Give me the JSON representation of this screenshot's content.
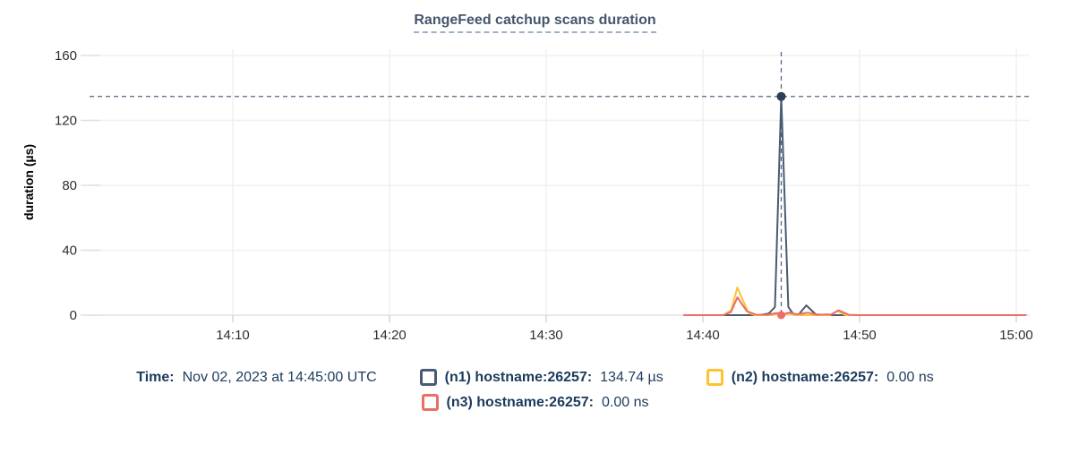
{
  "title": "RangeFeed catchup scans duration",
  "legend": {
    "time_label": "Time:",
    "time_value": "Nov 02, 2023 at 14:45:00 UTC"
  },
  "chart_data": {
    "type": "line",
    "title": "RangeFeed catchup scans duration",
    "ylabel": "duration (µs)",
    "ylim": [
      0,
      160
    ],
    "y_ticks": [
      0,
      40,
      80,
      120,
      160
    ],
    "x_ticks": [
      {
        "t": 10,
        "label": "14:10"
      },
      {
        "t": 20,
        "label": "14:20"
      },
      {
        "t": 30,
        "label": "14:30"
      },
      {
        "t": 40,
        "label": "14:40"
      },
      {
        "t": 50,
        "label": "14:50"
      },
      {
        "t": 60,
        "label": "15:00"
      }
    ],
    "grid": true,
    "legend_position": "bottom",
    "series": [
      {
        "id": "n1",
        "name": "(n1) hostname:26257:",
        "value_label": "134.74 µs",
        "color": "#4a5b73",
        "row": 1,
        "points": [
          [
            38.8,
            0
          ],
          [
            43.6,
            0
          ],
          [
            44.2,
            1
          ],
          [
            44.6,
            5
          ],
          [
            45,
            134.74
          ],
          [
            45.45,
            5
          ],
          [
            45.75,
            1
          ],
          [
            46.1,
            0.3
          ],
          [
            46.6,
            6
          ],
          [
            47.2,
            0.5
          ],
          [
            47.8,
            0
          ],
          [
            60.6,
            0
          ]
        ]
      },
      {
        "id": "n2",
        "name": "(n2) hostname:26257:",
        "value_label": "0.00 ns",
        "color": "#fcc433",
        "row": 1,
        "points": [
          [
            38.8,
            0
          ],
          [
            41.3,
            0
          ],
          [
            41.8,
            3
          ],
          [
            42.2,
            17
          ],
          [
            42.9,
            1.5
          ],
          [
            43.3,
            0
          ],
          [
            44.4,
            0
          ],
          [
            44.8,
            1
          ],
          [
            45.1,
            0
          ],
          [
            45.5,
            1
          ],
          [
            45.9,
            0
          ],
          [
            48.1,
            0
          ],
          [
            48.6,
            2.5
          ],
          [
            49.1,
            0
          ],
          [
            60.6,
            0
          ]
        ]
      },
      {
        "id": "n3",
        "name": "(n3) hostname:26257:",
        "value_label": "0.00 ns",
        "color": "#eb6e68",
        "row": 2,
        "points": [
          [
            38.8,
            0
          ],
          [
            41.3,
            0
          ],
          [
            41.8,
            2
          ],
          [
            42.2,
            11
          ],
          [
            42.8,
            2.5
          ],
          [
            43.4,
            0.3
          ],
          [
            44.1,
            0.2
          ],
          [
            44.7,
            1.3
          ],
          [
            45.05,
            0.4
          ],
          [
            45.5,
            1.6
          ],
          [
            46,
            0.5
          ],
          [
            46.7,
            1.5
          ],
          [
            47.3,
            0.3
          ],
          [
            48.2,
            0.5
          ],
          [
            48.65,
            3
          ],
          [
            49.3,
            0.2
          ],
          [
            50,
            0
          ],
          [
            60.6,
            0
          ]
        ]
      }
    ],
    "hover": {
      "t": 45,
      "time_label": "Nov 02, 2023 at 14:45:00 UTC",
      "highlight_value": 134.74,
      "peak_dot_series": "n1",
      "baseline_dot_series": "n3",
      "crosshair_color": "#54697f",
      "peak_dot_color": "#2b3f58"
    },
    "axis_colors": {
      "grid": "#f0f0f0",
      "axis_line": "#e0e0e0",
      "tick_mark": "#d2d2d2",
      "tick_label": "#2b2e30"
    }
  }
}
